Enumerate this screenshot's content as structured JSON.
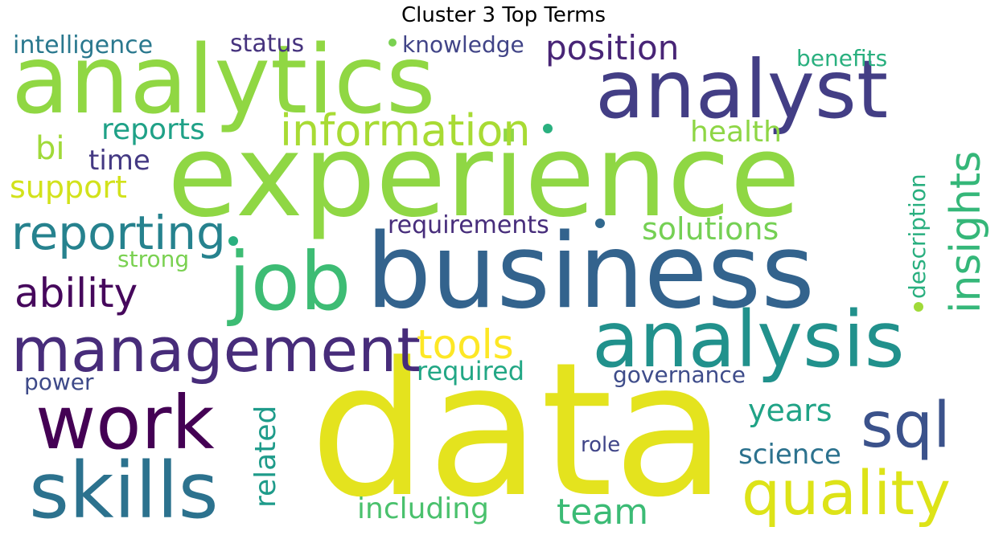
{
  "title": "Cluster 3 Top Terms",
  "words": [
    {
      "text": "data",
      "color": "#e4e31e"
    },
    {
      "text": "experience",
      "color": "#8fd744"
    },
    {
      "text": "business",
      "color": "#33638d"
    },
    {
      "text": "analytics",
      "color": "#90d743"
    },
    {
      "text": "analyst",
      "color": "#433e85"
    },
    {
      "text": "analysis",
      "color": "#21918c"
    },
    {
      "text": "job",
      "color": "#3dbc74"
    },
    {
      "text": "skills",
      "color": "#2c728e"
    },
    {
      "text": "management",
      "color": "#472c7a"
    },
    {
      "text": "work",
      "color": "#440154"
    },
    {
      "text": "quality",
      "color": "#dde318"
    },
    {
      "text": "sql",
      "color": "#3b528b"
    },
    {
      "text": "information",
      "color": "#a8db34"
    },
    {
      "text": "reporting",
      "color": "#26828e"
    },
    {
      "text": "position",
      "color": "#482576"
    },
    {
      "text": "insights",
      "color": "#35b779"
    },
    {
      "text": "ability",
      "color": "#46085c"
    },
    {
      "text": "tools",
      "color": "#fde725"
    },
    {
      "text": "team",
      "color": "#3bbb75"
    },
    {
      "text": "intelligence",
      "color": "#2a788e"
    },
    {
      "text": "reports",
      "color": "#1fa187"
    },
    {
      "text": "health",
      "color": "#8ed645"
    },
    {
      "text": "requirements",
      "color": "#472d7b"
    },
    {
      "text": "solutions",
      "color": "#75d054"
    },
    {
      "text": "description",
      "color": "#29af7f"
    },
    {
      "text": "years",
      "color": "#20a386"
    },
    {
      "text": "science",
      "color": "#2c728e"
    },
    {
      "text": "including",
      "color": "#4ac16d"
    },
    {
      "text": "required",
      "color": "#22a785"
    },
    {
      "text": "related",
      "color": "#1e9b8a"
    },
    {
      "text": "support",
      "color": "#d2e21b"
    },
    {
      "text": "knowledge",
      "color": "#414487"
    },
    {
      "text": "benefits",
      "color": "#2ab07f"
    },
    {
      "text": "status",
      "color": "#46337e"
    },
    {
      "text": "time",
      "color": "#443983"
    },
    {
      "text": "bi",
      "color": "#a0da39"
    },
    {
      "text": "strong",
      "color": "#7ad151"
    },
    {
      "text": "governance",
      "color": "#3e4c8a"
    },
    {
      "text": "power",
      "color": "#3e4a89"
    },
    {
      "text": "role",
      "color": "#404588"
    }
  ]
}
